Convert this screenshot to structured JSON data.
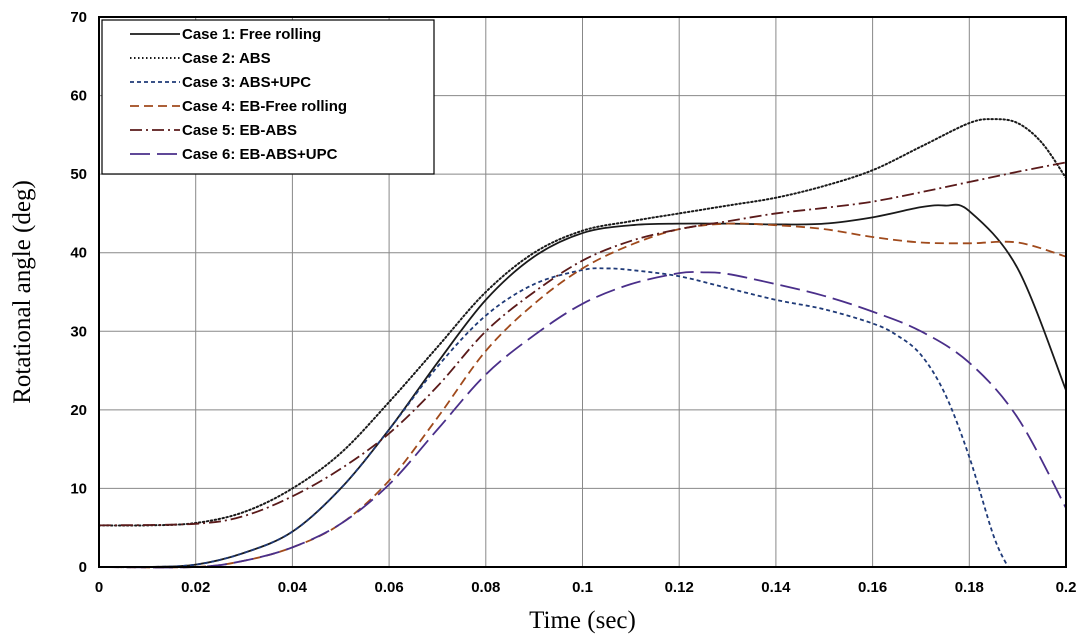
{
  "chart_data": {
    "type": "line",
    "title": "",
    "xlabel": "Time (sec)",
    "ylabel": "Rotational angle (deg)",
    "xlim": [
      0,
      0.2
    ],
    "ylim": [
      0,
      70
    ],
    "xticks": [
      0,
      0.02,
      0.04,
      0.06,
      0.08,
      0.1,
      0.12,
      0.14,
      0.16,
      0.18,
      0.2
    ],
    "xtick_labels": [
      "0",
      "0.02",
      "0.04",
      "0.06",
      "0.08",
      "0.1",
      "0.12",
      "0.14",
      "0.16",
      "0.18",
      "0.2"
    ],
    "yticks": [
      0,
      10,
      20,
      30,
      40,
      50,
      60,
      70
    ],
    "ytick_labels": [
      "0",
      "10",
      "20",
      "30",
      "40",
      "50",
      "60",
      "70"
    ],
    "grid": true,
    "legend_position": "top-left",
    "series": [
      {
        "name": "Case 1: Free rolling",
        "color": "#1a1a1a",
        "dash": "solid",
        "x": [
          0,
          0.01,
          0.02,
          0.03,
          0.04,
          0.05,
          0.06,
          0.07,
          0.08,
          0.09,
          0.1,
          0.11,
          0.12,
          0.13,
          0.14,
          0.15,
          0.16,
          0.17,
          0.175,
          0.18,
          0.19,
          0.2
        ],
        "y": [
          0,
          0,
          0.3,
          1.8,
          4.5,
          10,
          17.5,
          26,
          34,
          39.5,
          42.5,
          43.5,
          43.7,
          43.7,
          43.6,
          43.7,
          44.5,
          45.8,
          46,
          45.3,
          38,
          22.5
        ]
      },
      {
        "name": "Case 2: ABS",
        "color": "#1a1a1a",
        "dash": "dotted",
        "x": [
          0,
          0.01,
          0.02,
          0.03,
          0.04,
          0.05,
          0.06,
          0.07,
          0.08,
          0.09,
          0.1,
          0.11,
          0.12,
          0.13,
          0.14,
          0.15,
          0.16,
          0.17,
          0.18,
          0.185,
          0.19,
          0.195,
          0.2
        ],
        "y": [
          5.3,
          5.3,
          5.6,
          7,
          10,
          14.5,
          21,
          28,
          35,
          40,
          42.8,
          44,
          45,
          46,
          47,
          48.5,
          50.5,
          53.5,
          56.5,
          57,
          56.5,
          54,
          49.5
        ]
      },
      {
        "name": "Case 3: ABS+UPC",
        "color": "#1f3a78",
        "dash": "short-dash",
        "x": [
          0,
          0.01,
          0.02,
          0.03,
          0.04,
          0.05,
          0.06,
          0.07,
          0.08,
          0.09,
          0.1,
          0.105,
          0.11,
          0.12,
          0.13,
          0.14,
          0.15,
          0.16,
          0.165,
          0.17,
          0.175,
          0.18,
          0.185,
          0.188
        ],
        "y": [
          0,
          0,
          0.3,
          1.8,
          4.5,
          10,
          17.5,
          25.5,
          32,
          36,
          37.8,
          38,
          37.8,
          37,
          35.5,
          34,
          32.8,
          31,
          29.5,
          27,
          22,
          14,
          4,
          0
        ]
      },
      {
        "name": "Case 4: EB-Free rolling",
        "color": "#a04a1c",
        "dash": "dashed",
        "x": [
          0,
          0.02,
          0.03,
          0.04,
          0.05,
          0.06,
          0.07,
          0.08,
          0.09,
          0.1,
          0.11,
          0.12,
          0.13,
          0.14,
          0.15,
          0.16,
          0.17,
          0.18,
          0.19,
          0.2
        ],
        "y": [
          0,
          0,
          0.8,
          2.5,
          5.5,
          11,
          19,
          27.5,
          33.5,
          38,
          41,
          43,
          43.7,
          43.5,
          43,
          42,
          41.3,
          41.2,
          41.3,
          39.5
        ]
      },
      {
        "name": "Case 5: EB-ABS",
        "color": "#5a1a1a",
        "dash": "dash-dot",
        "x": [
          0,
          0.02,
          0.03,
          0.04,
          0.05,
          0.06,
          0.07,
          0.08,
          0.09,
          0.1,
          0.11,
          0.12,
          0.13,
          0.14,
          0.15,
          0.16,
          0.17,
          0.18,
          0.19,
          0.2
        ],
        "y": [
          5.3,
          5.5,
          6.5,
          9,
          12.5,
          17,
          23,
          30,
          35,
          39,
          41.5,
          43,
          44,
          45,
          45.7,
          46.5,
          47.7,
          49,
          50.3,
          51.5
        ]
      },
      {
        "name": "Case 6: EB-ABS+UPC",
        "color": "#4a2f8a",
        "dash": "long-dash",
        "x": [
          0,
          0.02,
          0.03,
          0.04,
          0.05,
          0.06,
          0.07,
          0.08,
          0.09,
          0.1,
          0.11,
          0.12,
          0.125,
          0.13,
          0.14,
          0.15,
          0.16,
          0.17,
          0.18,
          0.19,
          0.2
        ],
        "y": [
          0,
          0,
          0.8,
          2.5,
          5.5,
          10.5,
          17.5,
          24.5,
          29.5,
          33.5,
          36,
          37.4,
          37.5,
          37.3,
          36,
          34.5,
          32.5,
          30,
          26,
          19,
          7.5
        ]
      }
    ]
  }
}
